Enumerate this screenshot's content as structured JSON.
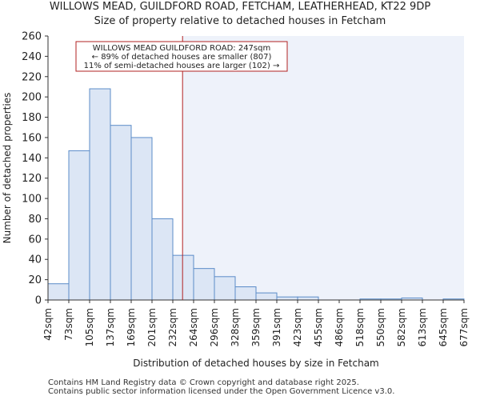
{
  "chart_data": {
    "type": "histogram",
    "title": "WILLOWS MEAD, GUILDFORD ROAD, FETCHAM, LEATHERHEAD, KT22 9DP",
    "subtitle": "Size of property relative to detached houses in Fetcham",
    "xlabel": "Distribution of detached houses by size in Fetcham",
    "ylabel": "Number of detached properties",
    "ylim": [
      0,
      260
    ],
    "yticks": [
      0,
      20,
      40,
      60,
      80,
      100,
      120,
      140,
      160,
      180,
      200,
      220,
      240,
      260
    ],
    "categories": [
      "42sqm",
      "73sqm",
      "105sqm",
      "137sqm",
      "169sqm",
      "201sqm",
      "232sqm",
      "264sqm",
      "296sqm",
      "328sqm",
      "359sqm",
      "391sqm",
      "423sqm",
      "455sqm",
      "486sqm",
      "518sqm",
      "550sqm",
      "582sqm",
      "613sqm",
      "645sqm",
      "677sqm"
    ],
    "values": [
      16,
      147,
      208,
      172,
      160,
      80,
      44,
      31,
      23,
      13,
      7,
      3,
      3,
      0,
      0,
      1,
      1,
      2,
      0,
      1
    ],
    "marker": {
      "value_sqm": 247,
      "label_lines": [
        "WILLOWS MEAD GUILDFORD ROAD: 247sqm",
        "← 89% of detached houses are smaller (807)",
        "11% of semi-detached houses are larger (102) →"
      ]
    },
    "colors": {
      "bar_fill": "#dce6f5",
      "bar_stroke": "#5b8cc8",
      "shade": "#eef2fa",
      "marker": "#b22222",
      "annotation_border": "#b22222"
    }
  },
  "footer": {
    "line1": "Contains HM Land Registry data © Crown copyright and database right 2025.",
    "line2": "Contains public sector information licensed under the Open Government Licence v3.0."
  }
}
